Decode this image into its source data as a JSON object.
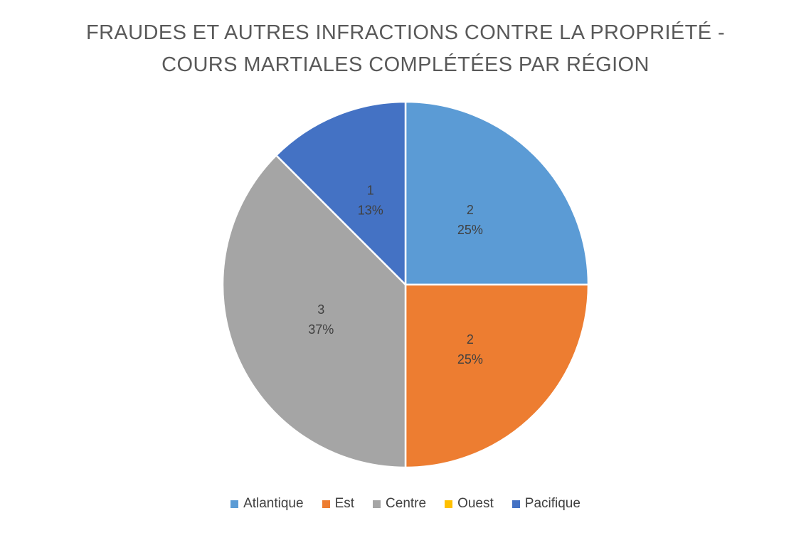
{
  "chart_data": {
    "type": "pie",
    "title": "FRAUDES ET AUTRES INFRACTIONS CONTRE LA PROPRIÉTÉ - COURS MARTIALES COMPLÉTÉES PAR RÉGION",
    "title_lines": [
      "FRAUDES ET AUTRES INFRACTIONS CONTRE LA PROPRIÉTÉ -",
      "COURS MARTIALES COMPLÉTÉES PAR RÉGION"
    ],
    "slices": [
      {
        "name": "Atlantique",
        "value": 2,
        "percent_label": "25%",
        "color": "#5B9BD5"
      },
      {
        "name": "Est",
        "value": 2,
        "percent_label": "25%",
        "color": "#ED7D31"
      },
      {
        "name": "Centre",
        "value": 3,
        "percent_label": "37%",
        "color": "#A5A5A5"
      },
      {
        "name": "Ouest",
        "value": 0,
        "percent_label": "",
        "color": "#FFC000"
      },
      {
        "name": "Pacifique",
        "value": 1,
        "percent_label": "13%",
        "color": "#4472C4"
      }
    ],
    "legend_position": "bottom",
    "start_angle_deg": 0,
    "direction": "clockwise",
    "colors": {
      "background": "#FFFFFF",
      "title_text": "#595959",
      "data_label_text": "#404040",
      "legend_text": "#404040",
      "slice_border": "#FFFFFF"
    }
  }
}
